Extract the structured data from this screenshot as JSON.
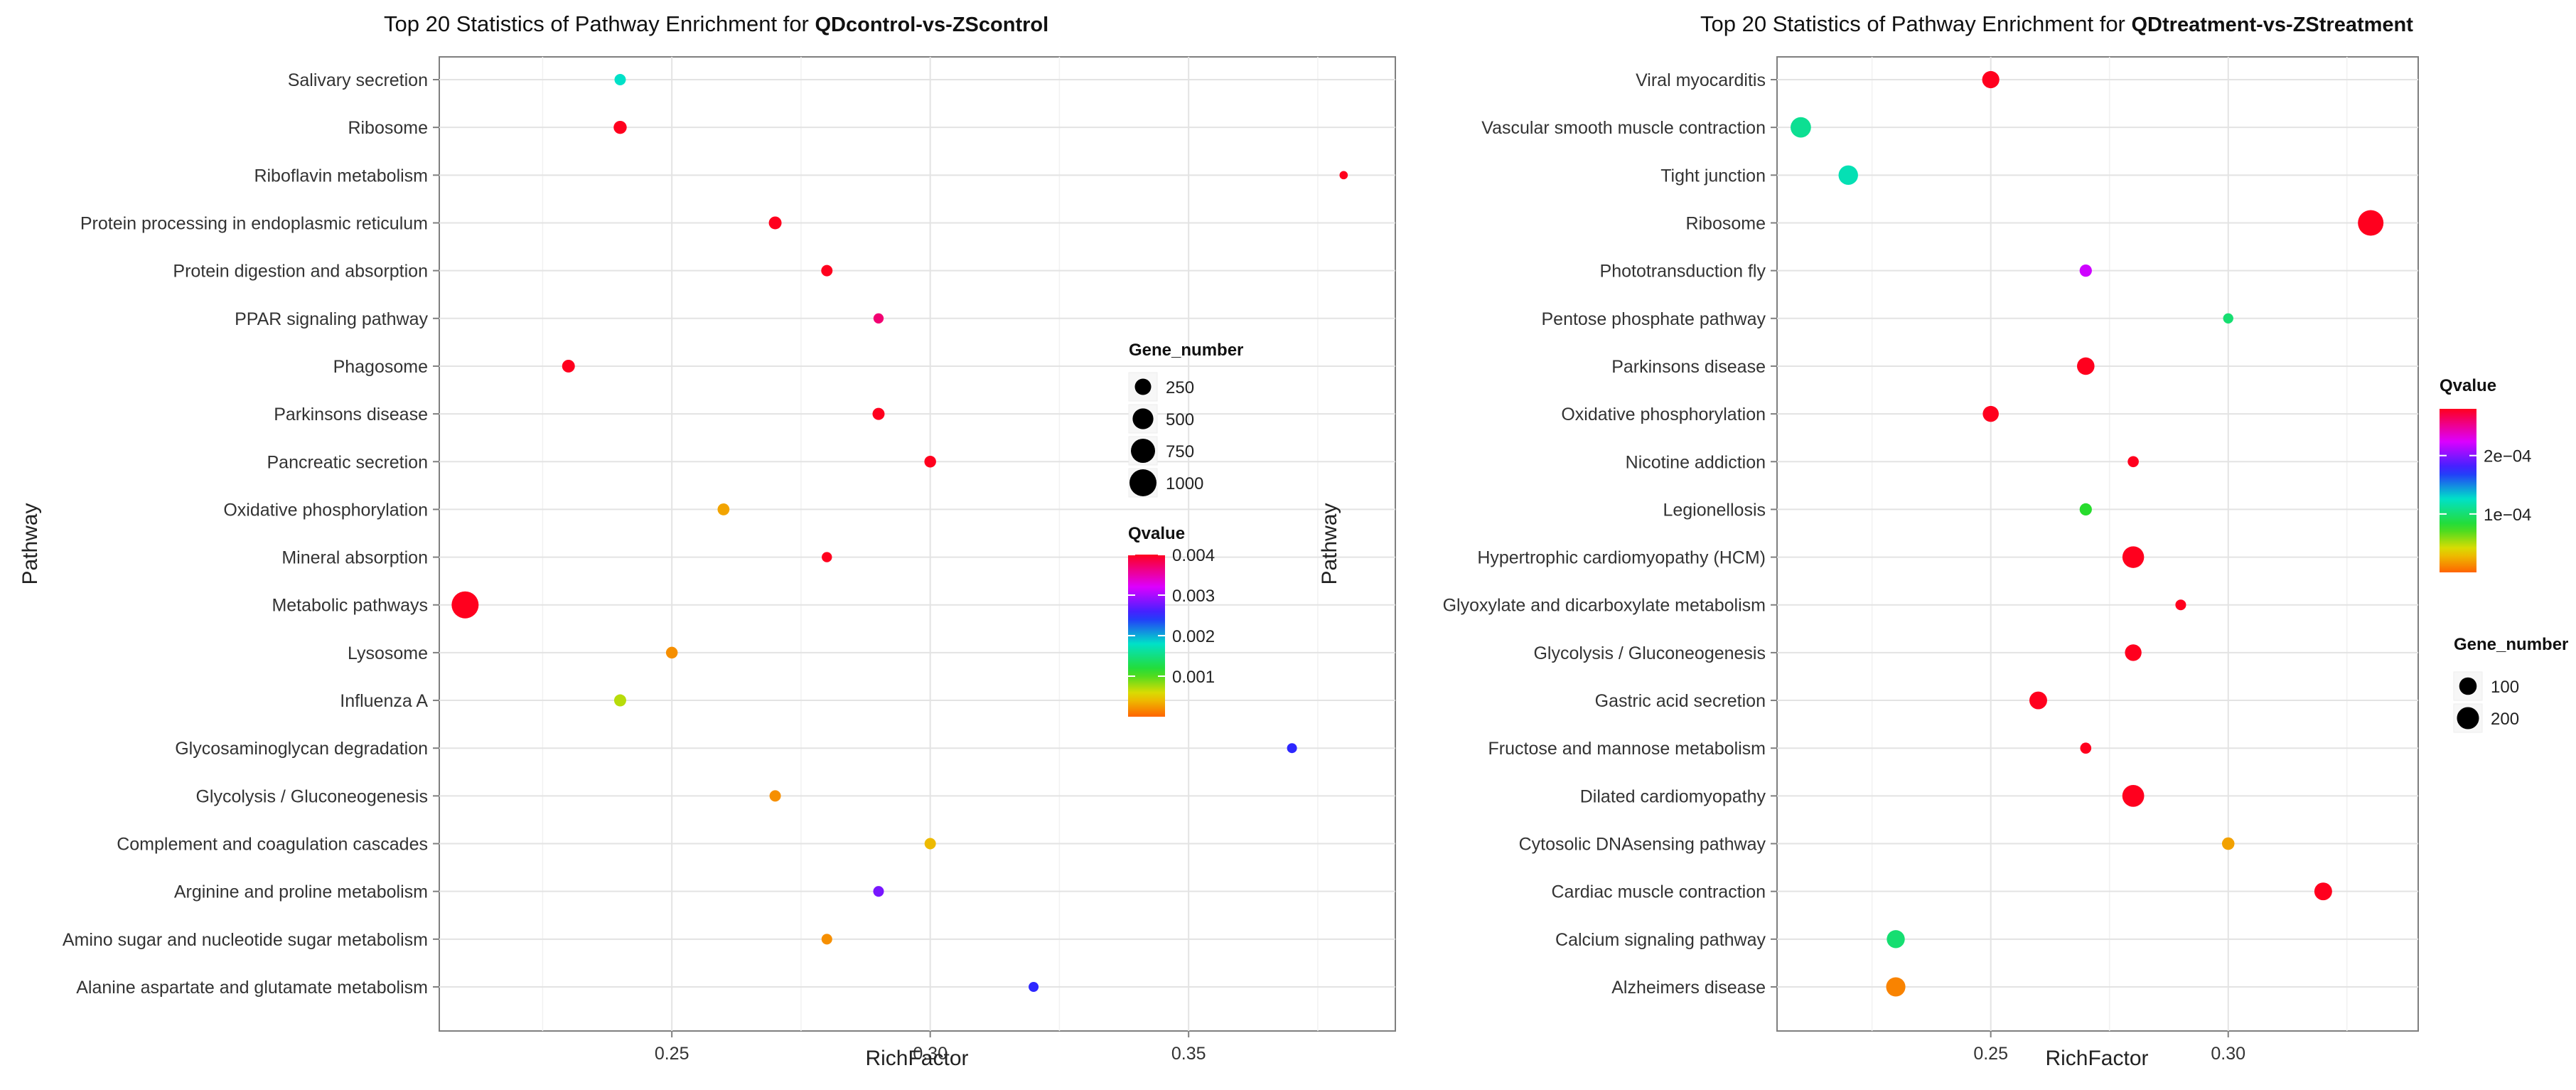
{
  "chart_data": [
    {
      "type": "scatter",
      "title": "Top 20 Statistics of Pathway Enrichment for ",
      "title_suffix": "QDcontrol-vs-ZScontrol",
      "xlabel": "RichFactor",
      "ylabel": "Pathway",
      "xlim": [
        0.205,
        0.39
      ],
      "xticks": [
        0.25,
        0.3,
        0.35
      ],
      "xtick_labels": [
        "0.25",
        "0.30",
        "0.35"
      ],
      "grid": true,
      "size_legend": {
        "title": "Gene_number",
        "values": [
          250,
          500,
          750,
          1000
        ],
        "labels": [
          "250",
          "500",
          "750",
          "1000"
        ]
      },
      "color_legend": {
        "title": "Qvalue",
        "min": 0,
        "max": 0.004,
        "ticks": [
          0.001,
          0.002,
          0.003,
          0.004
        ],
        "tick_labels": [
          "0.001",
          "0.002",
          "0.003",
          "0.004"
        ]
      },
      "points": [
        {
          "pathway": "Salivary secretion",
          "rich_factor": 0.24,
          "qvalue": 0.0018,
          "gene_number": 70
        },
        {
          "pathway": "Ribosome",
          "rich_factor": 0.24,
          "qvalue": 0.004,
          "gene_number": 120
        },
        {
          "pathway": "Riboflavin metabolism",
          "rich_factor": 0.38,
          "qvalue": 0.004,
          "gene_number": 15
        },
        {
          "pathway": "Protein processing in endoplasmic reticulum",
          "rich_factor": 0.27,
          "qvalue": 0.004,
          "gene_number": 110
        },
        {
          "pathway": "Protein digestion and absorption",
          "rich_factor": 0.28,
          "qvalue": 0.004,
          "gene_number": 70
        },
        {
          "pathway": "PPAR signaling pathway",
          "rich_factor": 0.29,
          "qvalue": 0.0037,
          "gene_number": 45
        },
        {
          "pathway": "Phagosome",
          "rich_factor": 0.23,
          "qvalue": 0.004,
          "gene_number": 110
        },
        {
          "pathway": "Parkinsons disease",
          "rich_factor": 0.29,
          "qvalue": 0.004,
          "gene_number": 90
        },
        {
          "pathway": "Pancreatic secretion",
          "rich_factor": 0.3,
          "qvalue": 0.004,
          "gene_number": 80
        },
        {
          "pathway": "Oxidative phosphorylation",
          "rich_factor": 0.26,
          "qvalue": 0.0003,
          "gene_number": 85
        },
        {
          "pathway": "Mineral absorption",
          "rich_factor": 0.28,
          "qvalue": 0.004,
          "gene_number": 45
        },
        {
          "pathway": "Metabolic pathways",
          "rich_factor": 0.21,
          "qvalue": 0.004,
          "gene_number": 1000
        },
        {
          "pathway": "Lysosome",
          "rich_factor": 0.25,
          "qvalue": 0.0002,
          "gene_number": 80
        },
        {
          "pathway": "Influenza A",
          "rich_factor": 0.24,
          "qvalue": 0.0007,
          "gene_number": 90
        },
        {
          "pathway": "Glycosaminoglycan degradation",
          "rich_factor": 0.37,
          "qvalue": 0.0025,
          "gene_number": 40
        },
        {
          "pathway": "Glycolysis / Gluconeogenesis",
          "rich_factor": 0.27,
          "qvalue": 0.0002,
          "gene_number": 70
        },
        {
          "pathway": "Complement and coagulation cascades",
          "rich_factor": 0.3,
          "qvalue": 0.0004,
          "gene_number": 70
        },
        {
          "pathway": "Arginine and proline metabolism",
          "rich_factor": 0.29,
          "qvalue": 0.0028,
          "gene_number": 55
        },
        {
          "pathway": "Amino sugar and nucleotide sugar metabolism",
          "rich_factor": 0.28,
          "qvalue": 0.0002,
          "gene_number": 55
        },
        {
          "pathway": "Alanine aspartate and glutamate metabolism",
          "rich_factor": 0.32,
          "qvalue": 0.0025,
          "gene_number": 40
        }
      ]
    },
    {
      "type": "scatter",
      "title": "Top 20 Statistics of Pathway Enrichment for ",
      "title_suffix": "QDtreatment-vs-ZStreatment",
      "xlabel": "RichFactor",
      "ylabel": "Pathway",
      "xlim": [
        0.205,
        0.34
      ],
      "xticks": [
        0.25,
        0.3
      ],
      "xtick_labels": [
        "0.25",
        "0.30"
      ],
      "grid": true,
      "size_legend": {
        "title": "Gene_number",
        "values": [
          100,
          200
        ],
        "labels": [
          "100",
          "200"
        ]
      },
      "color_legend": {
        "title": "Qvalue",
        "min": 0,
        "max": 0.00028,
        "ticks": [
          0.0001,
          0.0002
        ],
        "tick_labels": [
          "1e−04",
          "2e−04"
        ]
      },
      "points": [
        {
          "pathway": "Viral myocarditis",
          "rich_factor": 0.25,
          "qvalue": 0.00028,
          "gene_number": 95
        },
        {
          "pathway": "Vascular smooth muscle contraction",
          "rich_factor": 0.21,
          "qvalue": 0.00011,
          "gene_number": 160
        },
        {
          "pathway": "Tight junction",
          "rich_factor": 0.22,
          "qvalue": 0.00012,
          "gene_number": 140
        },
        {
          "pathway": "Ribosome",
          "rich_factor": 0.33,
          "qvalue": 0.00028,
          "gene_number": 300
        },
        {
          "pathway": "Phototransduction  fly",
          "rich_factor": 0.27,
          "qvalue": 0.00022,
          "gene_number": 28
        },
        {
          "pathway": "Pentose phosphate pathway",
          "rich_factor": 0.3,
          "qvalue": 0.0001,
          "gene_number": 12
        },
        {
          "pathway": "Parkinsons disease",
          "rich_factor": 0.27,
          "qvalue": 0.00028,
          "gene_number": 100
        },
        {
          "pathway": "Oxidative phosphorylation",
          "rich_factor": 0.25,
          "qvalue": 0.00028,
          "gene_number": 75
        },
        {
          "pathway": "Nicotine addiction",
          "rich_factor": 0.28,
          "qvalue": 0.00028,
          "gene_number": 18
        },
        {
          "pathway": "Legionellosis",
          "rich_factor": 0.27,
          "qvalue": 8e-05,
          "gene_number": 28
        },
        {
          "pathway": "Hypertrophic cardiomyopathy (HCM)",
          "rich_factor": 0.28,
          "qvalue": 0.00028,
          "gene_number": 190
        },
        {
          "pathway": "Glyoxylate and dicarboxylate metabolism",
          "rich_factor": 0.29,
          "qvalue": 0.00028,
          "gene_number": 15
        },
        {
          "pathway": "Glycolysis / Gluconeogenesis",
          "rich_factor": 0.28,
          "qvalue": 0.00028,
          "gene_number": 85
        },
        {
          "pathway": "Gastric acid secretion",
          "rich_factor": 0.26,
          "qvalue": 0.00028,
          "gene_number": 105
        },
        {
          "pathway": "Fructose and mannose metabolism",
          "rich_factor": 0.27,
          "qvalue": 0.00028,
          "gene_number": 18
        },
        {
          "pathway": "Dilated cardiomyopathy",
          "rich_factor": 0.28,
          "qvalue": 0.00028,
          "gene_number": 195
        },
        {
          "pathway": "Cytosolic DNAsensing pathway",
          "rich_factor": 0.3,
          "qvalue": 2e-05,
          "gene_number": 30
        },
        {
          "pathway": "Cardiac muscle contraction",
          "rich_factor": 0.32,
          "qvalue": 0.00028,
          "gene_number": 105
        },
        {
          "pathway": "Calcium signaling pathway",
          "rich_factor": 0.23,
          "qvalue": 0.0001,
          "gene_number": 110
        },
        {
          "pathway": "Alzheimers disease",
          "rich_factor": 0.23,
          "qvalue": 1e-05,
          "gene_number": 135
        }
      ]
    }
  ]
}
